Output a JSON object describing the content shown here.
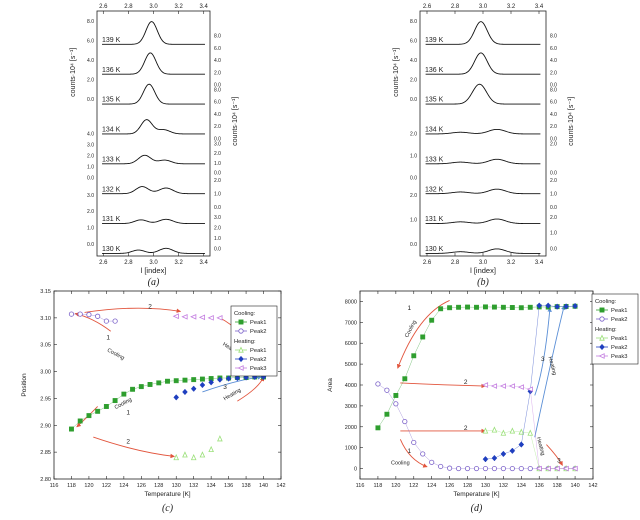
{
  "chart_data": [
    {
      "id": "a",
      "type": "line",
      "panel_label": "(a)",
      "xlabel": "l [index]",
      "ylabel_left": "counts·10⁴ [s⁻¹]",
      "ylabel_right": "counts·10⁴ [s⁻¹]",
      "xlim": [
        2.55,
        3.45
      ],
      "x_ticks": [
        "2.6",
        "2.8",
        "3.0",
        "3.2",
        "3.4"
      ],
      "series": [
        {
          "name": "139 K",
          "peaks": [
            {
              "c": 2.985,
              "w": 0.045,
              "h": 8.0
            }
          ],
          "base": 0.2
        },
        {
          "name": "136 K",
          "peaks": [
            {
              "c": 2.975,
              "w": 0.045,
              "h": 7.5
            }
          ],
          "base": 0.2
        },
        {
          "name": "135 K",
          "peaks": [
            {
              "c": 2.965,
              "w": 0.045,
              "h": 7.0
            }
          ],
          "base": 0.2
        },
        {
          "name": "134 K",
          "peaks": [
            {
              "c": 2.945,
              "w": 0.045,
              "h": 5.0
            },
            {
              "c": 3.08,
              "w": 0.05,
              "h": 1.5
            }
          ],
          "base": 0.2
        },
        {
          "name": "133 K",
          "peaks": [
            {
              "c": 2.93,
              "w": 0.05,
              "h": 3.0
            },
            {
              "c": 3.09,
              "w": 0.05,
              "h": 1.3
            }
          ],
          "base": 0.2
        },
        {
          "name": "132 K",
          "peaks": [
            {
              "c": 2.91,
              "w": 0.05,
              "h": 2.5
            },
            {
              "c": 3.1,
              "w": 0.055,
              "h": 2.0
            }
          ],
          "base": 0.2
        },
        {
          "name": "131 K",
          "peaks": [
            {
              "c": 2.9,
              "w": 0.05,
              "h": 1.3
            },
            {
              "c": 3.1,
              "w": 0.055,
              "h": 1.5
            }
          ],
          "base": 0.2
        },
        {
          "name": "130 K",
          "peaks": [
            {
              "c": 2.88,
              "w": 0.05,
              "h": 1.2
            },
            {
              "c": 3.1,
              "w": 0.055,
              "h": 1.8
            }
          ],
          "base": 0.2
        }
      ],
      "left_tick_groups": [
        [
          "0.0",
          "2.0",
          "4.0",
          "6.0",
          "8.0"
        ],
        [
          "0.0",
          "1.0",
          "2.0",
          "3.0",
          "4.0"
        ],
        [
          "0.0",
          "1.0",
          "2.0",
          "3.0"
        ]
      ],
      "right_tick_groups": [
        [
          "0.0",
          "2.0",
          "4.0",
          "6.0",
          "8.0"
        ],
        [
          "0.0",
          "2.0",
          "4.0",
          "6.0",
          "8.0"
        ],
        [
          "0.0",
          "1.0",
          "2.0",
          "3.0"
        ],
        [
          "0.0",
          "1.0",
          "2.0"
        ],
        [
          "0.0",
          "1.0",
          "2.0",
          "3.0"
        ]
      ]
    },
    {
      "id": "b",
      "type": "line",
      "panel_label": "(b)",
      "xlabel": "l [index]",
      "ylabel_left": "counts·10⁴ [s⁻¹]",
      "ylabel_right": "counts·10⁴ [s⁻¹]",
      "xlim": [
        2.55,
        3.45
      ],
      "x_ticks": [
        "2.6",
        "2.8",
        "3.0",
        "3.2",
        "3.4"
      ],
      "series": [
        {
          "name": "139 K",
          "peaks": [
            {
              "c": 2.985,
              "w": 0.045,
              "h": 8.0
            }
          ],
          "base": 0.2
        },
        {
          "name": "136 K",
          "peaks": [
            {
              "c": 2.985,
              "w": 0.045,
              "h": 7.5
            }
          ],
          "base": 0.2
        },
        {
          "name": "135 K",
          "peaks": [
            {
              "c": 2.975,
              "w": 0.05,
              "h": 7.0
            }
          ],
          "base": 0.2
        },
        {
          "name": "134 K",
          "peaks": [
            {
              "c": 2.84,
              "w": 0.06,
              "h": 0.6
            },
            {
              "c": 3.1,
              "w": 0.06,
              "h": 1.6
            }
          ],
          "base": 0.2
        },
        {
          "name": "133 K",
          "peaks": [
            {
              "c": 2.84,
              "w": 0.06,
              "h": 0.6
            },
            {
              "c": 3.1,
              "w": 0.06,
              "h": 1.6
            }
          ],
          "base": 0.2
        },
        {
          "name": "132 K",
          "peaks": [
            {
              "c": 2.84,
              "w": 0.06,
              "h": 0.6
            },
            {
              "c": 3.1,
              "w": 0.06,
              "h": 1.6
            }
          ],
          "base": 0.2
        },
        {
          "name": "131 K",
          "peaks": [
            {
              "c": 2.84,
              "w": 0.06,
              "h": 0.6
            },
            {
              "c": 3.1,
              "w": 0.06,
              "h": 1.6
            }
          ],
          "base": 0.2
        },
        {
          "name": "130 K",
          "peaks": [
            {
              "c": 2.84,
              "w": 0.06,
              "h": 0.6
            },
            {
              "c": 3.1,
              "w": 0.06,
              "h": 1.6
            }
          ],
          "base": 0.2
        }
      ],
      "left_tick_groups": [
        [
          "0.0",
          "2.0",
          "4.0",
          "6.0",
          "8.0"
        ],
        [
          "0.0",
          "1.0",
          "2.0"
        ],
        [
          "0.0",
          "1.0",
          "2.0"
        ]
      ],
      "right_tick_groups": [
        [
          "0.0",
          "2.0",
          "4.0",
          "6.0",
          "8.0"
        ],
        [
          "0.0",
          "2.0",
          "4.0",
          "6.0",
          "8.0"
        ],
        [
          "0.0",
          "2.0"
        ],
        [
          "0.0",
          "1.0",
          "2.0"
        ],
        [
          "0.0",
          "1.0",
          "2.0"
        ]
      ]
    },
    {
      "id": "c",
      "type": "scatter",
      "panel_label": "(c)",
      "xlabel": "Temperature [K]",
      "ylabel": "Position",
      "xlim": [
        116,
        142
      ],
      "ylim": [
        2.8,
        3.15
      ],
      "x_ticks": [
        "116",
        "118",
        "120",
        "122",
        "124",
        "126",
        "128",
        "130",
        "132",
        "134",
        "136",
        "138",
        "140",
        "142"
      ],
      "y_ticks": [
        "2.80",
        "2.85",
        "2.90",
        "2.95",
        "3.00",
        "3.05",
        "3.10",
        "3.15"
      ],
      "legend": {
        "cooling_title": "Cooling:",
        "heating_title": "Heating:"
      },
      "series": [
        {
          "name": "Peak1",
          "group": "Cooling",
          "color": "#2e9e2e",
          "marker": "square-filled",
          "x": [
            118,
            119,
            120,
            121,
            122,
            123,
            124,
            125,
            126,
            127,
            128,
            129,
            130,
            131,
            132,
            133,
            134,
            135,
            136,
            137,
            138,
            139,
            140
          ],
          "y": [
            2.893,
            2.908,
            2.918,
            2.926,
            2.935,
            2.946,
            2.958,
            2.967,
            2.972,
            2.976,
            2.979,
            2.982,
            2.983,
            2.984,
            2.985,
            2.986,
            2.987,
            2.988,
            2.988,
            2.989,
            2.989,
            2.99,
            2.99
          ]
        },
        {
          "name": "Peak2",
          "group": "Cooling",
          "color": "#7b61c9",
          "marker": "circle-open",
          "x": [
            118,
            119,
            120,
            121,
            122,
            123
          ],
          "y": [
            3.107,
            3.107,
            3.106,
            3.103,
            3.094,
            3.094
          ]
        },
        {
          "name": "Peak1",
          "group": "Heating",
          "color": "#9be07a",
          "marker": "triangle-open",
          "x": [
            130,
            131,
            132,
            133,
            134,
            135
          ],
          "y": [
            2.84,
            2.845,
            2.84,
            2.845,
            2.855,
            2.875
          ]
        },
        {
          "name": "Peak2",
          "group": "Heating",
          "color": "#1f3fbf",
          "marker": "diamond-filled",
          "x": [
            130,
            131,
            132,
            133,
            134,
            135,
            136,
            137,
            138,
            139,
            140
          ],
          "y": [
            2.952,
            2.962,
            2.968,
            2.975,
            2.98,
            2.985,
            2.987,
            2.988,
            2.989,
            2.99,
            2.99
          ]
        },
        {
          "name": "Peak3",
          "group": "Heating",
          "color": "#c37de0",
          "marker": "triangle-left-open",
          "x": [
            130,
            131,
            132,
            133,
            134,
            135
          ],
          "y": [
            3.103,
            3.102,
            3.102,
            3.101,
            3.1,
            3.1
          ]
        }
      ],
      "annotations": [
        {
          "text": "Cooling",
          "x": 123.0,
          "y": 3.03,
          "rotate": 28,
          "color": "#222"
        },
        {
          "text": "Cooling",
          "x": 124.0,
          "y": 2.938,
          "rotate": -28,
          "color": "#222"
        },
        {
          "text": "Heating",
          "x": 136.2,
          "y": 3.04,
          "rotate": 32,
          "color": "#222"
        },
        {
          "text": "Heating",
          "x": 136.5,
          "y": 2.955,
          "rotate": -30,
          "color": "#222"
        },
        {
          "text": "1",
          "x": 122.2,
          "y": 3.06,
          "rotate": 0,
          "color": "#d9442c"
        },
        {
          "text": "1",
          "x": 124.5,
          "y": 2.92,
          "rotate": 0,
          "color": "#d9442c"
        },
        {
          "text": "2",
          "x": 127.0,
          "y": 3.117,
          "rotate": 0,
          "color": "#d9442c"
        },
        {
          "text": "2",
          "x": 124.5,
          "y": 2.866,
          "rotate": 0,
          "color": "#d9442c"
        },
        {
          "text": "3",
          "x": 139.0,
          "y": 3.058,
          "rotate": 0,
          "color": "#d9442c"
        },
        {
          "text": "3",
          "x": 135.6,
          "y": 2.968,
          "rotate": 0,
          "color": "#d9442c"
        }
      ]
    },
    {
      "id": "d",
      "type": "scatter",
      "panel_label": "(d)",
      "xlabel": "Temperature [K]",
      "ylabel": "Area",
      "xlim": [
        116,
        142
      ],
      "ylim": [
        -500,
        8500
      ],
      "x_ticks": [
        "116",
        "118",
        "120",
        "122",
        "124",
        "126",
        "128",
        "130",
        "132",
        "134",
        "136",
        "138",
        "140",
        "142"
      ],
      "y_ticks": [
        "0",
        "1000",
        "2000",
        "3000",
        "4000",
        "5000",
        "6000",
        "7000",
        "8000"
      ],
      "legend": {
        "cooling_title": "Cooling:",
        "heating_title": "Heating:"
      },
      "series": [
        {
          "name": "Peak1",
          "group": "Cooling",
          "color": "#2e9e2e",
          "marker": "square-filled",
          "x": [
            118,
            119,
            120,
            121,
            122,
            123,
            124,
            125,
            126,
            127,
            128,
            129,
            130,
            131,
            132,
            133,
            134,
            135,
            136,
            137,
            138,
            139,
            140
          ],
          "y": [
            1950,
            2600,
            3500,
            4300,
            5400,
            6300,
            7100,
            7650,
            7700,
            7720,
            7730,
            7720,
            7740,
            7730,
            7720,
            7710,
            7700,
            7720,
            7740,
            7730,
            7750,
            7760,
            7770
          ]
        },
        {
          "name": "Peak2",
          "group": "Cooling",
          "color": "#7b61c9",
          "marker": "circle-open",
          "x": [
            118,
            119,
            120,
            121,
            122,
            123,
            124,
            125,
            126,
            127,
            128,
            129,
            130,
            131,
            132,
            133,
            134,
            135,
            136,
            137,
            138,
            139,
            140
          ],
          "y": [
            4050,
            3750,
            3100,
            2250,
            1250,
            700,
            300,
            100,
            20,
            0,
            0,
            0,
            0,
            0,
            0,
            0,
            0,
            0,
            0,
            0,
            0,
            0,
            0
          ]
        },
        {
          "name": "Peak1",
          "group": "Heating",
          "color": "#9be07a",
          "marker": "triangle-open",
          "x": [
            130,
            131,
            132,
            133,
            134,
            135,
            136,
            137,
            138,
            139,
            140
          ],
          "y": [
            1800,
            1850,
            1700,
            1800,
            1750,
            1700,
            0,
            0,
            0,
            0,
            0
          ]
        },
        {
          "name": "Peak2",
          "group": "Heating",
          "color": "#1f3fbf",
          "marker": "diamond-filled",
          "x": [
            130,
            131,
            132,
            133,
            134,
            135,
            136,
            137,
            138,
            139,
            140
          ],
          "y": [
            450,
            500,
            700,
            850,
            1150,
            3700,
            7800,
            7800,
            7750,
            7760,
            7780
          ]
        },
        {
          "name": "Peak3",
          "group": "Heating",
          "color": "#c37de0",
          "marker": "triangle-left-open",
          "x": [
            130,
            131,
            132,
            133,
            134,
            135,
            136,
            137,
            138,
            139,
            140
          ],
          "y": [
            4000,
            3950,
            3950,
            3950,
            3900,
            3800,
            0,
            0,
            0,
            0,
            0
          ]
        }
      ],
      "annotations": [
        {
          "text": "Cooling",
          "x": 121.8,
          "y": 6650,
          "rotate": -62,
          "color": "#222"
        },
        {
          "text": "Cooling",
          "x": 120.5,
          "y": 200,
          "rotate": 0,
          "color": "#222"
        },
        {
          "text": "Heating",
          "x": 137.3,
          "y": 4900,
          "rotate": 75,
          "color": "#222"
        },
        {
          "text": "Heating",
          "x": 136.0,
          "y": 1050,
          "rotate": 75,
          "color": "#222"
        },
        {
          "text": "1",
          "x": 121.5,
          "y": 7600,
          "rotate": 0,
          "color": "#d9442c"
        },
        {
          "text": "1",
          "x": 121.5,
          "y": 750,
          "rotate": 0,
          "color": "#d9442c"
        },
        {
          "text": "2",
          "x": 127.8,
          "y": 4050,
          "rotate": 0,
          "color": "#d9442c"
        },
        {
          "text": "2",
          "x": 127.8,
          "y": 1850,
          "rotate": 0,
          "color": "#d9442c"
        },
        {
          "text": "3",
          "x": 136.4,
          "y": 5150,
          "rotate": 0,
          "color": "#d9442c"
        },
        {
          "text": "3",
          "x": 138.2,
          "y": 300,
          "rotate": 0,
          "color": "#d9442c"
        }
      ]
    }
  ]
}
